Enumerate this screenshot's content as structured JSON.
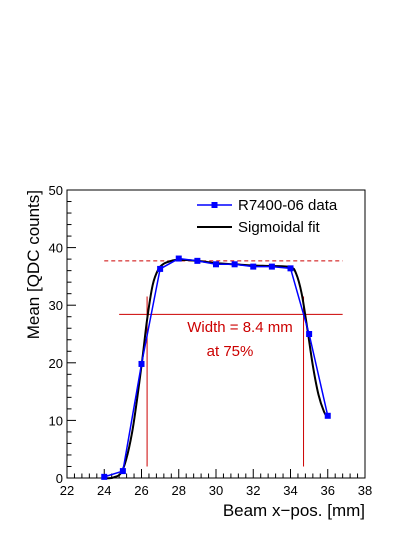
{
  "chart_data": {
    "type": "line",
    "title": "",
    "xlabel": "Beam x−pos. [mm]",
    "ylabel": "Mean [QDC counts]",
    "xlim": [
      22,
      38
    ],
    "ylim": [
      0,
      50
    ],
    "x_ticks": [
      22,
      24,
      26,
      28,
      30,
      32,
      34,
      36,
      38
    ],
    "y_ticks": [
      0,
      10,
      20,
      30,
      40,
      50
    ],
    "grid": false,
    "legend_position": "top-right",
    "colors": {
      "data": "#0000ff",
      "fit": "#000000",
      "annotation": "#cc0000"
    },
    "series": [
      {
        "name": "R7400-06 data",
        "style": "line+square-markers",
        "x": [
          24,
          25,
          26,
          27,
          28,
          29,
          30,
          31,
          32,
          33,
          34,
          35,
          36
        ],
        "y": [
          0.2,
          1.2,
          19.8,
          36.3,
          38.1,
          37.7,
          37.1,
          37.1,
          36.7,
          36.7,
          36.4,
          25.0,
          10.8
        ]
      },
      {
        "name": "Sigmoidal fit",
        "style": "smooth-line",
        "x": [
          24,
          24.5,
          25,
          25.5,
          26,
          26.3,
          26.6,
          26.9,
          27.2,
          27.6,
          28,
          29,
          30,
          31,
          32,
          33,
          34,
          34.3,
          34.6,
          34.9,
          35.2,
          35.5,
          35.8,
          36
        ],
        "y": [
          0.0,
          0.1,
          1.5,
          8.0,
          19.5,
          27.5,
          33.5,
          36.2,
          37.2,
          37.7,
          37.9,
          37.7,
          37.3,
          37.1,
          36.9,
          36.8,
          36.6,
          35.5,
          32.0,
          26.0,
          19.5,
          14.5,
          11.5,
          10.5
        ]
      }
    ],
    "reference_lines": {
      "plateau_dashed_y": 37.7,
      "plateau_dashed_x": [
        24,
        36.8
      ],
      "level_75_y": 28.4,
      "level_75_x": [
        24.8,
        36.8
      ],
      "width_left_x": 26.3,
      "width_right_x": 34.7,
      "vertical_y_range": [
        2,
        31.5
      ]
    },
    "annotation": {
      "line1": "Width = 8.4 mm",
      "line2": "at 75%"
    }
  }
}
